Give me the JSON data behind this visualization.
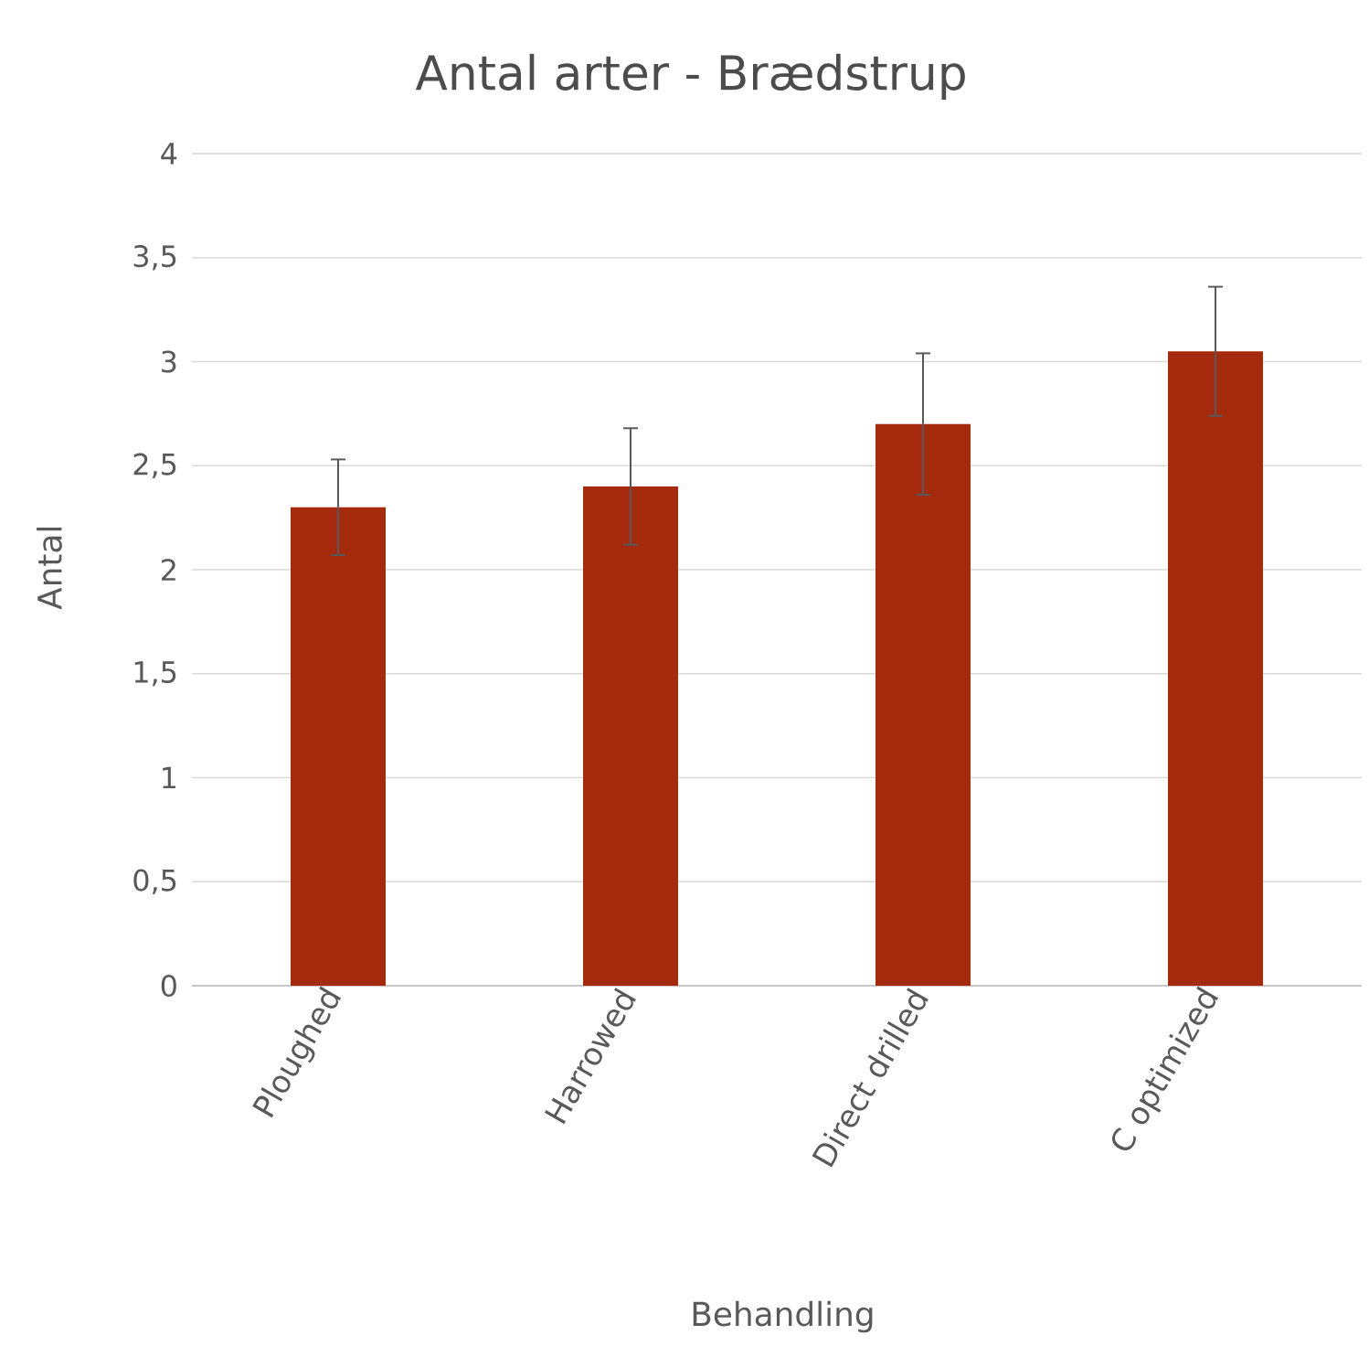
{
  "chart_data": {
    "type": "bar",
    "title": "Antal arter - Brædstrup",
    "xlabel": "Behandling",
    "ylabel": "Antal",
    "categories": [
      "Ploughed",
      "Harrowed",
      "Direct drilled",
      "C optimized"
    ],
    "values": [
      2.3,
      2.4,
      2.7,
      3.05
    ],
    "errors": [
      0.23,
      0.28,
      0.34,
      0.31
    ],
    "color": "#a52a0e",
    "ylim": [
      0,
      4
    ],
    "yticks": [
      0,
      {
        "value": 0.5,
        "label": "0,5"
      },
      1,
      {
        "value": 1.5,
        "label": "1,5"
      },
      2,
      {
        "value": 2.5,
        "label": "2,5"
      },
      3,
      {
        "value": 3.5,
        "label": "3,5"
      },
      4
    ],
    "grid": "y"
  }
}
